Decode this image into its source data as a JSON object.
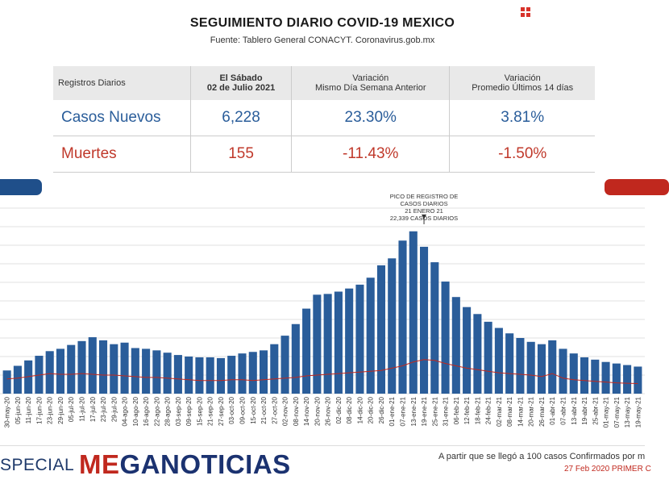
{
  "header": {
    "title": "SEGUIMIENTO DIARIO COVID-19 MEXICO",
    "subtitle": "Fuente: Tablero General CONACYT. Coronavirus.gob.mx"
  },
  "table": {
    "col_label": "Registros Diarios",
    "col_date_line1": "El Sábado",
    "col_date_line2": "02 de Julio 2021",
    "col_var_line1": "Variación",
    "col_var_line2": "Mismo Día Semana Anterior",
    "col_avg_line1": "Variación",
    "col_avg_line2": "Promedio Últimos 14 días",
    "rows": [
      {
        "label": "Casos Nuevos",
        "value": "6,228",
        "var_week": "23.30%",
        "var_14": "3.81%"
      },
      {
        "label": "Muertes",
        "value": "155",
        "var_week": "-11.43%",
        "var_14": "-1.50%"
      }
    ]
  },
  "colors": {
    "cases": "#2a5d9a",
    "deaths": "#c0281e",
    "brand": "#1b3270"
  },
  "chart_data": {
    "type": "bar",
    "x": [
      "30-may-20",
      "05-jun-20",
      "11-jun-20",
      "17-jun-20",
      "23-jun-20",
      "29-jun-20",
      "05-jul-20",
      "11-jul-20",
      "17-jul-20",
      "23-jul-20",
      "29-jul-20",
      "04-ago-20",
      "10-ago-20",
      "16-ago-20",
      "22-ago-20",
      "28-ago-20",
      "03-sep-20",
      "09-sep-20",
      "15-sep-20",
      "21-sep-20",
      "27-sep-20",
      "03-oct-20",
      "09-oct-20",
      "15-oct-20",
      "21-oct-20",
      "27-oct-20",
      "02-nov-20",
      "08-nov-20",
      "14-nov-20",
      "20-nov-20",
      "26-nov-20",
      "02-dic-20",
      "08-dic-20",
      "14-dic-20",
      "20-dic-20",
      "26-dic-20",
      "01-ene-21",
      "07-ene-21",
      "13-ene-21",
      "19-ene-21",
      "25-ene-21",
      "31-ene-21",
      "06-feb-21",
      "12-feb-21",
      "18-feb-21",
      "24-feb-21",
      "02-mar-21",
      "08-mar-21",
      "14-mar-21",
      "20-mar-21",
      "26-mar-21",
      "01-abr-21",
      "07-abr-21",
      "13-abr-21",
      "19-abr-21",
      "25-abr-21",
      "01-may-21",
      "07-may-21",
      "13-may-21",
      "19-may-21"
    ],
    "series": [
      {
        "name": "Casos Nuevos",
        "values": [
          3000,
          3600,
          4300,
          4900,
          5500,
          5800,
          6300,
          6800,
          7300,
          6900,
          6400,
          6600,
          5900,
          5800,
          5600,
          5300,
          5000,
          4800,
          4700,
          4700,
          4600,
          4900,
          5200,
          5400,
          5600,
          6400,
          7500,
          9000,
          11000,
          12800,
          12900,
          13200,
          13600,
          14100,
          15000,
          16600,
          17500,
          19800,
          21000,
          19000,
          17000,
          14500,
          12500,
          11200,
          10300,
          9300,
          8500,
          7800,
          7200,
          6700,
          6400,
          6900,
          5800,
          5200,
          4700,
          4400,
          4100,
          3900,
          3700,
          3500
        ]
      },
      {
        "name": "Muertes",
        "values": [
          1900,
          2000,
          2200,
          2400,
          2600,
          2500,
          2500,
          2600,
          2500,
          2400,
          2400,
          2300,
          2200,
          2100,
          2100,
          2000,
          1900,
          1800,
          1700,
          1700,
          1700,
          1800,
          1800,
          1700,
          1800,
          1900,
          2000,
          2100,
          2300,
          2400,
          2500,
          2600,
          2700,
          2800,
          2900,
          3000,
          3300,
          3600,
          4100,
          4400,
          4300,
          3900,
          3600,
          3300,
          3100,
          2900,
          2700,
          2600,
          2500,
          2400,
          2200,
          2600,
          2000,
          1800,
          1700,
          1600,
          1500,
          1400,
          1350,
          1300
        ]
      }
    ],
    "peak": {
      "x": "21-ene-21",
      "value": 22339
    },
    "annotation": [
      "PICO DE REGISTRO DE",
      "CASOS DIARIOS",
      "21 ENERO 21",
      "22,339 CASOS DIARIOS"
    ],
    "ylim": [
      0,
      24000
    ],
    "grid": true
  },
  "footer": {
    "special": "SPECIAL",
    "brand_prefix": "ME",
    "brand_rest": "GANOTICIAS",
    "note_line1": "A partir que se llegó a 100 casos Confirmados por m",
    "note_line2": "27 Feb 2020 PRIMER C"
  }
}
